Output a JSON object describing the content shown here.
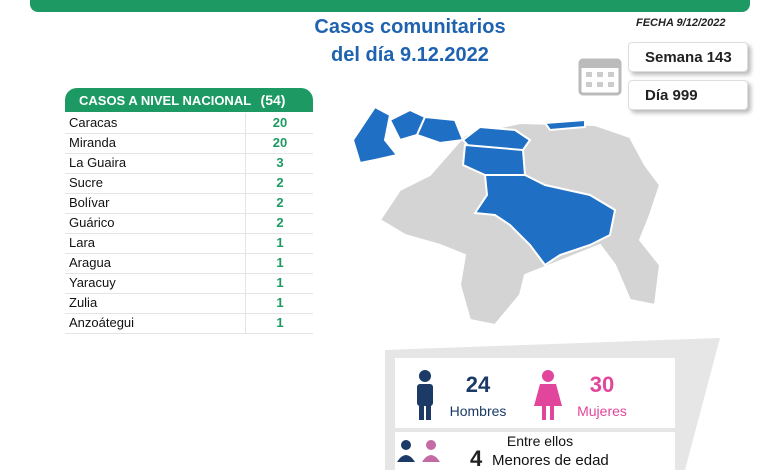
{
  "header": {
    "date": "FECHA 9/12/2022",
    "title_line1": "Casos comunitarios",
    "title_line2": "del día 9.12.2022",
    "week": "Semana 143",
    "day": "Día 999"
  },
  "table": {
    "title": "CASOS A NIVEL NACIONAL",
    "total": "(54)",
    "rows": [
      [
        "Caracas",
        20
      ],
      [
        "Miranda",
        20
      ],
      [
        "La Guaira",
        3
      ],
      [
        "Sucre",
        2
      ],
      [
        "Bolívar",
        2
      ],
      [
        "Guárico",
        2
      ],
      [
        "Lara",
        1
      ],
      [
        "Aragua",
        1
      ],
      [
        "Yaracuy",
        1
      ],
      [
        "Zulia",
        1
      ],
      [
        "Anzoátegui",
        1
      ]
    ]
  },
  "gender": {
    "men": 24,
    "men_label": "Hombres",
    "women": 30,
    "women_label": "Mujeres",
    "among": "Entre ellos",
    "minors": 4,
    "minors_label": "Menores de edad"
  }
}
